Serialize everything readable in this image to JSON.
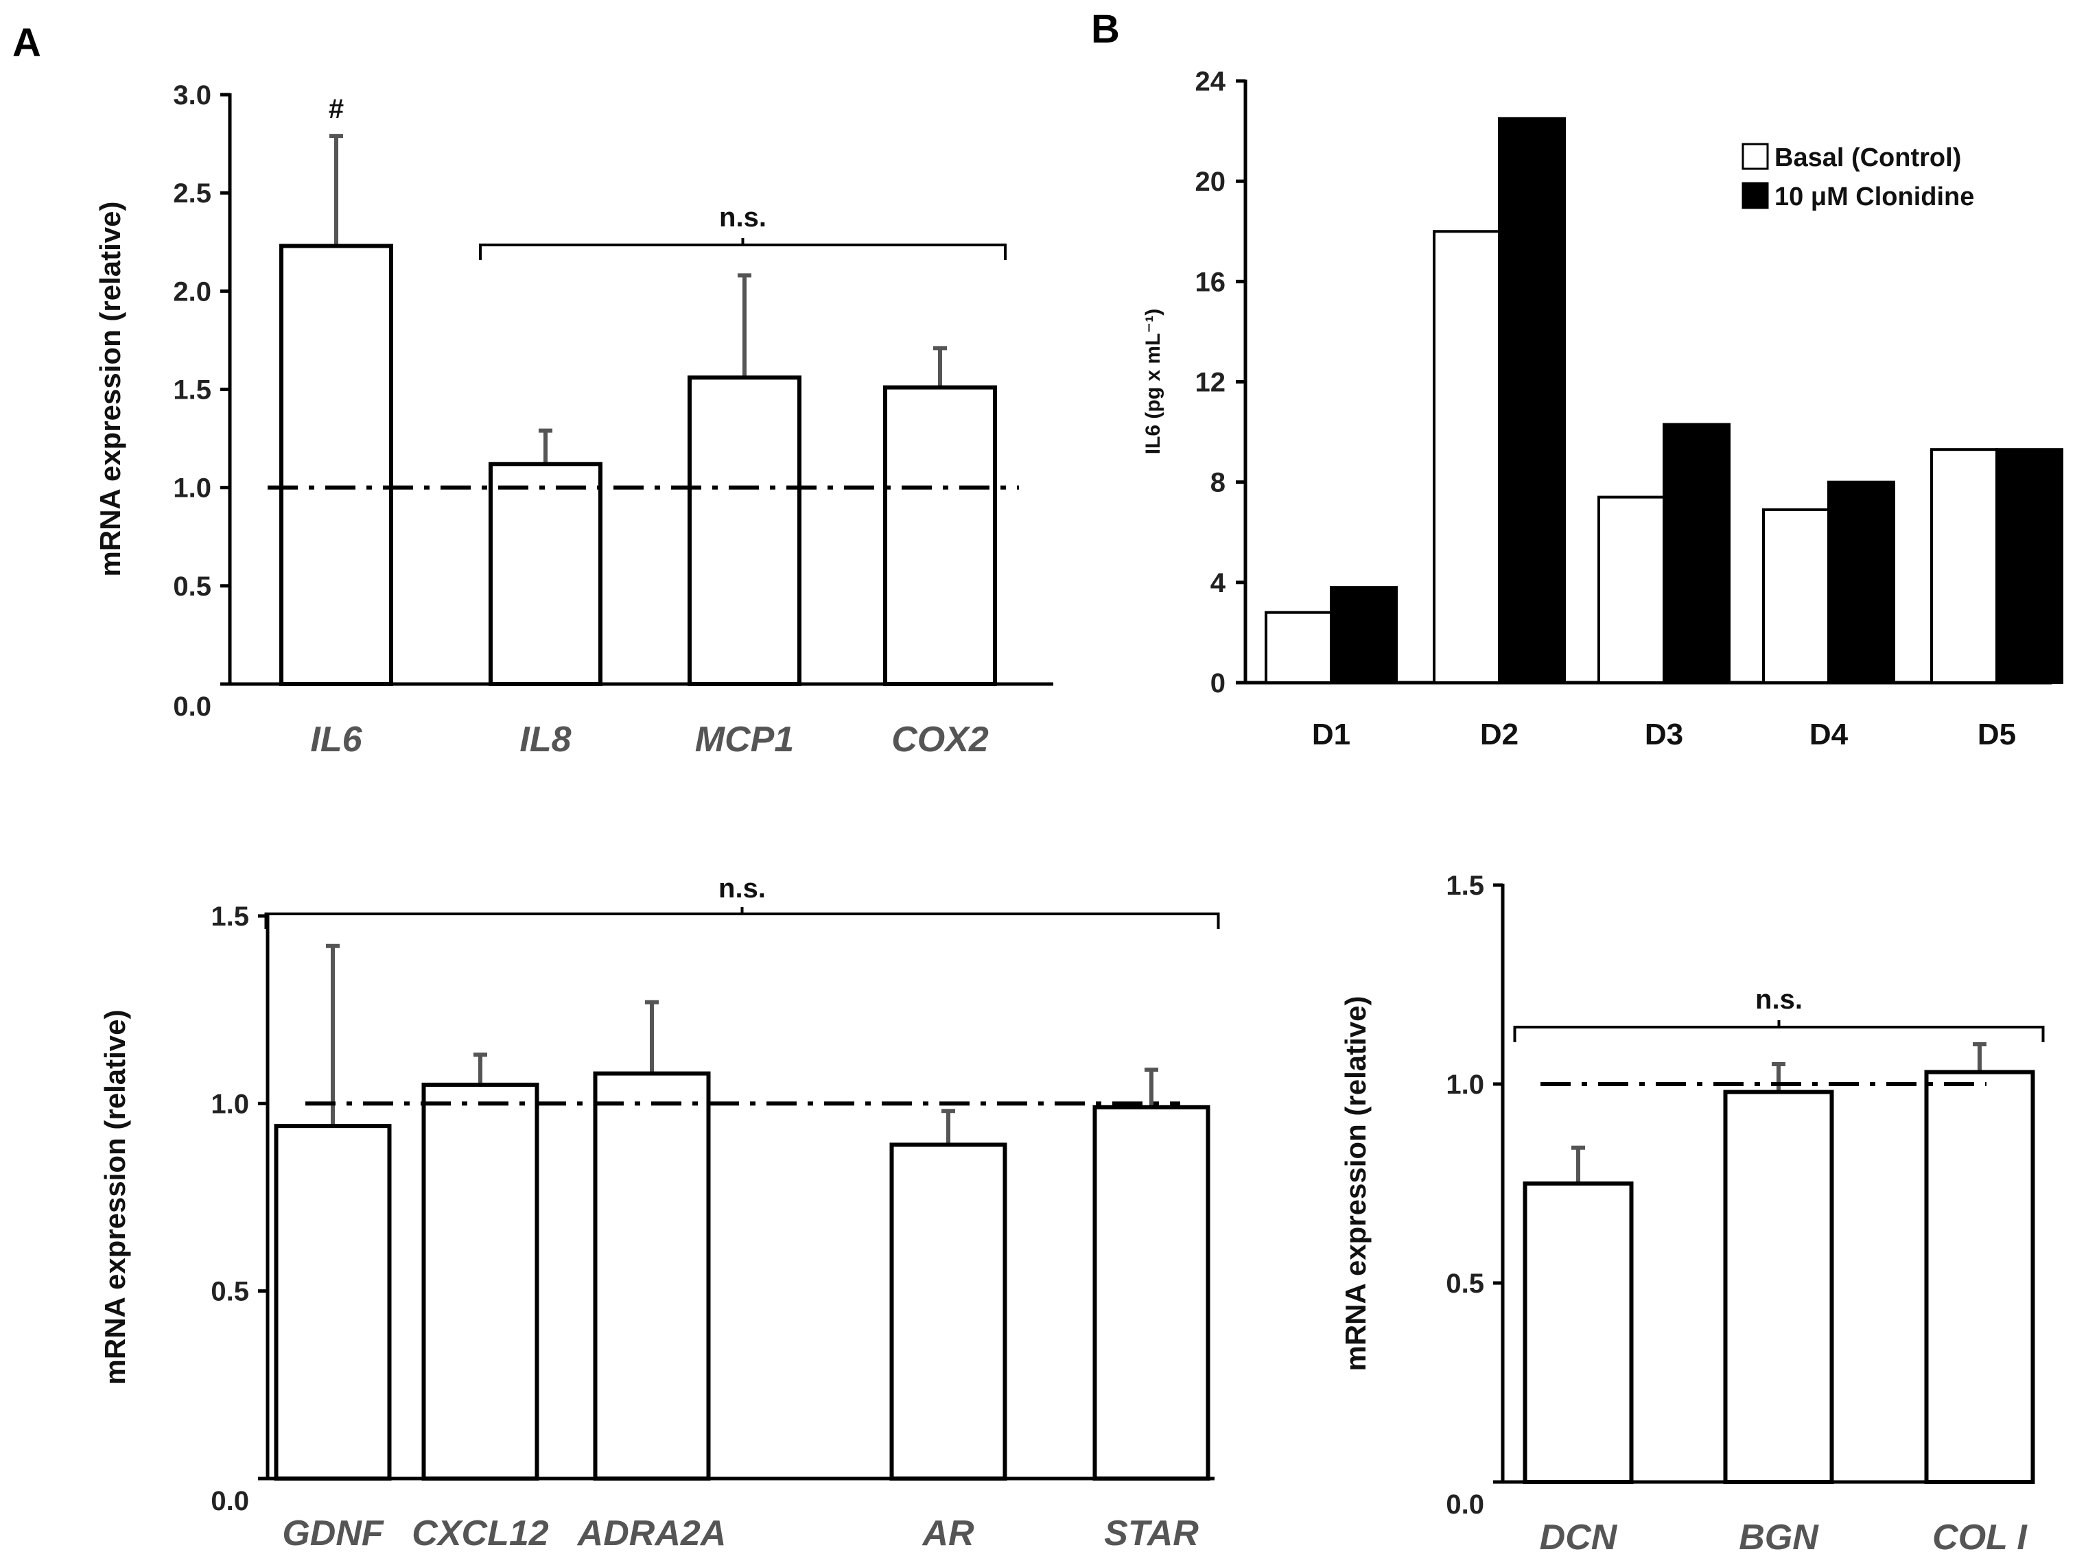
{
  "panel_labels": {
    "a": "A",
    "b": "B"
  },
  "colors": {
    "axis": "#000000",
    "error_bar": "#555555",
    "bar_open": "#ffffff",
    "bar_filled": "#000000"
  },
  "chart_data": [
    {
      "id": "a1",
      "type": "bar",
      "categories": [
        "IL6",
        "IL8",
        "MCP1",
        "COX2"
      ],
      "values": [
        2.23,
        1.12,
        1.56,
        1.51
      ],
      "errors": [
        0.56,
        0.17,
        0.52,
        0.2
      ],
      "ylabel": "mRNA expression (relative)",
      "ylim": [
        0,
        3.0
      ],
      "yticks": [
        "0.0",
        "0.5",
        "1.0",
        "1.5",
        "2.0",
        "2.5",
        "3.0"
      ],
      "reference_line": 1.0,
      "annotations": [
        {
          "text": "#",
          "category": "IL6"
        },
        {
          "text": "n.s.",
          "bracket_from": "IL8",
          "bracket_to": "COX2"
        }
      ]
    },
    {
      "id": "b",
      "type": "bar",
      "categories": [
        "D1",
        "D2",
        "D3",
        "D4",
        "D5"
      ],
      "series": [
        {
          "name": "Basal (Control)",
          "values": [
            2.8,
            18.0,
            7.4,
            6.9,
            9.3
          ]
        },
        {
          "name": "10 μM Clonidine",
          "values": [
            3.8,
            22.5,
            10.3,
            8.0,
            9.3
          ]
        }
      ],
      "ylabel": "IL6 (pg x mL⁻¹)",
      "ylim": [
        0,
        24
      ],
      "yticks": [
        "0",
        "4",
        "8",
        "12",
        "16",
        "20",
        "24"
      ],
      "legend_position": "top-right"
    },
    {
      "id": "a2",
      "type": "bar",
      "categories": [
        "GDNF",
        "CXCL12",
        "ADRA2A",
        "AR",
        "STAR"
      ],
      "values": [
        0.94,
        1.05,
        1.08,
        0.89,
        0.99
      ],
      "errors": [
        0.48,
        0.08,
        0.19,
        0.09,
        0.1
      ],
      "ylabel": "mRNA expression (relative)",
      "ylim": [
        0,
        1.5
      ],
      "yticks": [
        "0.0",
        "0.5",
        "1.0",
        "1.5"
      ],
      "reference_line": 1.0,
      "annotations": [
        {
          "text": "n.s.",
          "bracket_from": "GDNF",
          "bracket_to": "STAR"
        }
      ]
    },
    {
      "id": "a3",
      "type": "bar",
      "categories": [
        "DCN",
        "BGN",
        "COL I"
      ],
      "values": [
        0.75,
        0.98,
        1.03
      ],
      "errors": [
        0.09,
        0.07,
        0.07
      ],
      "ylabel": "mRNA expression (relative)",
      "ylim": [
        0,
        1.5
      ],
      "yticks": [
        "0.0",
        "0.5",
        "1.0",
        "1.5"
      ],
      "reference_line": 1.0,
      "annotations": [
        {
          "text": "n.s.",
          "bracket_from": "DCN",
          "bracket_to": "COL I"
        }
      ]
    }
  ]
}
